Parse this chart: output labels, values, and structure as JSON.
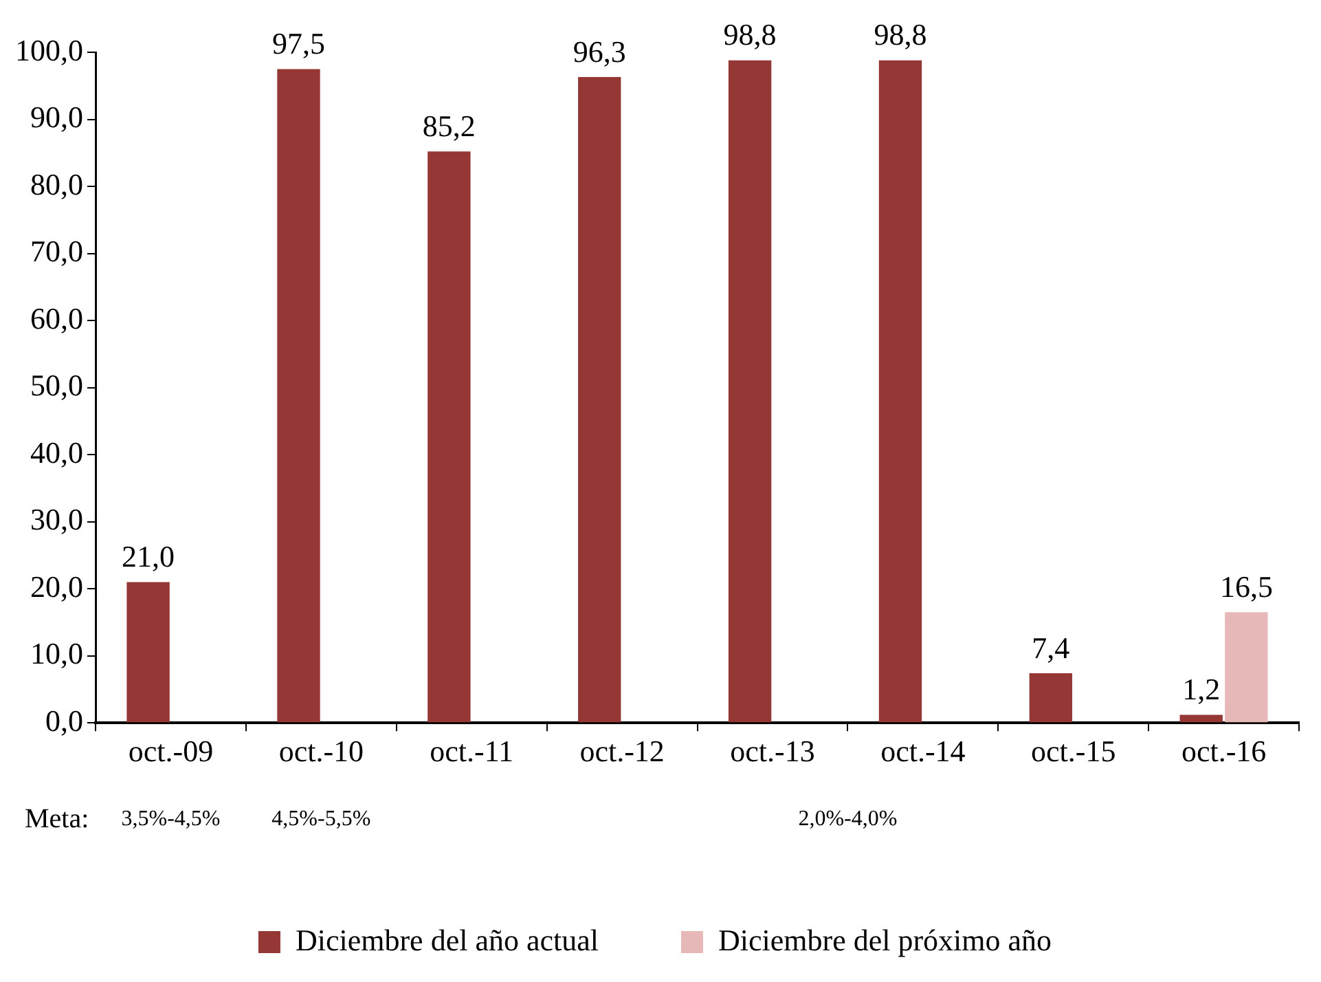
{
  "chart_data": {
    "type": "bar",
    "categories": [
      "oct.-09",
      "oct.-10",
      "oct.-11",
      "oct.-12",
      "oct.-13",
      "oct.-14",
      "oct.-15",
      "oct.-16"
    ],
    "series": [
      {
        "name": "Diciembre del año actual",
        "color": "#953735",
        "values": [
          21.0,
          97.5,
          85.2,
          96.3,
          98.8,
          98.8,
          7.4,
          1.2
        ],
        "value_labels": [
          "21,0",
          "97,5",
          "85,2",
          "96,3",
          "98,8",
          "98,8",
          "7,4",
          "1,2"
        ]
      },
      {
        "name": "Diciembre del próximo año",
        "color": "#e6b9b8",
        "values": [
          null,
          null,
          null,
          null,
          null,
          null,
          null,
          16.5
        ],
        "value_labels": [
          null,
          null,
          null,
          null,
          null,
          null,
          null,
          "16,5"
        ]
      }
    ],
    "ylim": [
      0,
      100
    ],
    "yticks": [
      {
        "value": 0,
        "label": "0,0"
      },
      {
        "value": 10,
        "label": "10,0"
      },
      {
        "value": 20,
        "label": "20,0"
      },
      {
        "value": 30,
        "label": "30,0"
      },
      {
        "value": 40,
        "label": "40,0"
      },
      {
        "value": 50,
        "label": "50,0"
      },
      {
        "value": 60,
        "label": "60,0"
      },
      {
        "value": 70,
        "label": "70,0"
      },
      {
        "value": 80,
        "label": "80,0"
      },
      {
        "value": 90,
        "label": "90,0"
      },
      {
        "value": 100,
        "label": "100,0"
      }
    ],
    "annotations": [
      "Meta:",
      "3,5%-4,5%",
      "4,5%-5,5%",
      "2,0%-4,0%"
    ],
    "grid": false,
    "legend": "bottom"
  }
}
